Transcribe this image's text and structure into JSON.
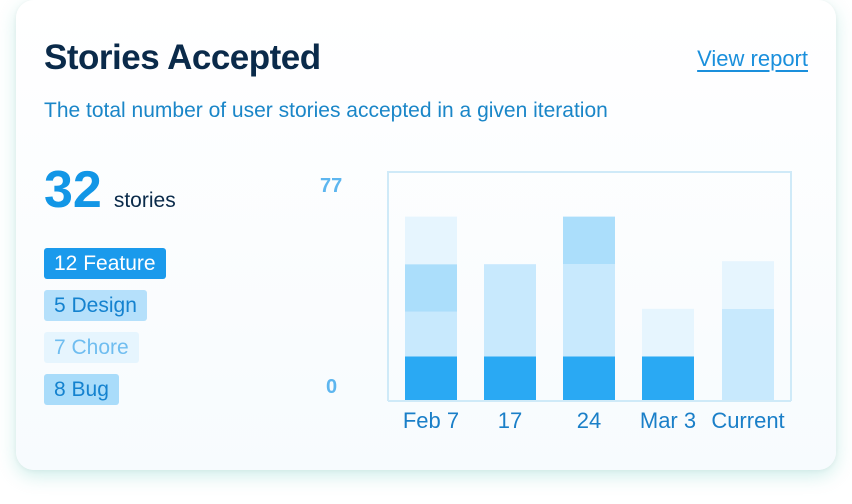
{
  "card": {
    "title": "Stories Accepted",
    "view_report": "View report",
    "subtitle": "The total number of user stories accepted in a given iteration",
    "total_value": "32",
    "total_unit": "stories"
  },
  "legend": {
    "feature": "12 Feature",
    "design": "5 Design",
    "chore": "7 Chore",
    "bug": "8 Bug"
  },
  "colors": {
    "feature": "#2aa9f3",
    "design": "#c8e9fd",
    "chore": "#e6f5fe",
    "bug": "#abdefb",
    "axis": "#cfeaf8"
  },
  "chart_data": {
    "type": "bar",
    "stacked": true,
    "categories": [
      "Feb 7",
      "17",
      "24",
      "Mar 3",
      "Current"
    ],
    "y_labels": [
      "77",
      "0"
    ],
    "ylim": [
      0,
      77
    ],
    "series": [
      {
        "name": "Feature",
        "values": [
          15,
          15,
          15,
          15,
          0
        ]
      },
      {
        "name": "Design",
        "values": [
          15,
          31,
          31,
          0,
          31
        ]
      },
      {
        "name": "Bug",
        "values": [
          16,
          0,
          16,
          0,
          0
        ]
      },
      {
        "name": "Chore",
        "values": [
          16,
          0,
          0,
          16,
          16
        ]
      }
    ]
  }
}
